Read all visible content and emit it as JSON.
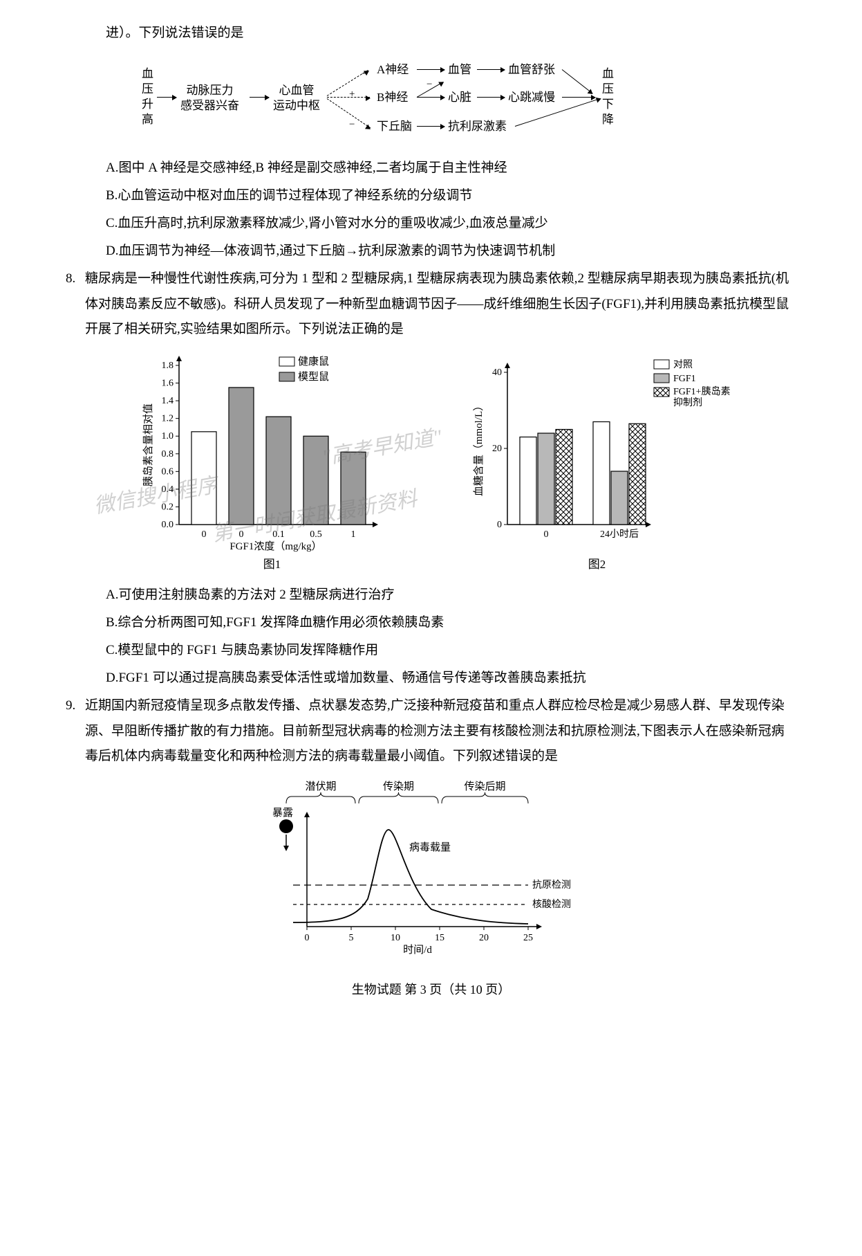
{
  "q7": {
    "continuation": "进）。下列说法错误的是",
    "flow": {
      "start_top": "血",
      "start_mid1": "压",
      "start_mid2": "升",
      "start_bot": "高",
      "node1_top": "动脉压力",
      "node1_bot": "感受器兴奋",
      "node2_top": "心血管",
      "node2_bot": "运动中枢",
      "nodeA": "A神经",
      "nodeB": "B神经",
      "nodeC": "下丘脑",
      "vessel": "血管",
      "vessel_relax": "血管舒张",
      "heart": "心脏",
      "heart_slow": "心跳减慢",
      "adh": "抗利尿激素",
      "out_top": "血",
      "out_mid1": "压",
      "out_mid2": "下",
      "out_bot": "降",
      "plus": "+",
      "minus": "−"
    },
    "optA": "A.图中 A 神经是交感神经,B 神经是副交感神经,二者均属于自主性神经",
    "optB": "B.心血管运动中枢对血压的调节过程体现了神经系统的分级调节",
    "optC": "C.血压升高时,抗利尿激素释放减少,肾小管对水分的重吸收减少,血液总量减少",
    "optD": "D.血压调节为神经—体液调节,通过下丘脑→抗利尿激素的调节为快速调节机制"
  },
  "q8": {
    "num": "8.",
    "stem": "糖尿病是一种慢性代谢性疾病,可分为 1 型和 2 型糖尿病,1 型糖尿病表现为胰岛素依赖,2 型糖尿病早期表现为胰岛素抵抗(机体对胰岛素反应不敏感)。科研人员发现了一种新型血糖调节因子——成纤维细胞生长因子(FGF1),并利用胰岛素抵抗模型鼠开展了相关研究,实验结果如图所示。下列说法正确的是",
    "chart1": {
      "type": "bar",
      "ylabel": "胰岛素含量相对值",
      "xlabel": "FGF1浓度（mg/kg）",
      "caption": "图1",
      "categories": [
        "0",
        "0",
        "0.1",
        "0.5",
        "1"
      ],
      "healthy": [
        1.05
      ],
      "model": [
        1.55,
        1.22,
        1.0,
        0.82
      ],
      "legend_healthy": "健康鼠",
      "legend_model": "模型鼠",
      "color_healthy": "#ffffff",
      "color_model": "#9a9a9a",
      "ylim": [
        0,
        1.8
      ],
      "ytick": 0.2,
      "bar_border": "#000000",
      "axis_color": "#000000",
      "label_fontsize": 14
    },
    "chart2": {
      "type": "bar",
      "ylabel": "血糖含量（mmol/L）",
      "caption": "图2",
      "categories": [
        "0",
        "24小时后"
      ],
      "series_control": [
        23,
        27
      ],
      "series_fgf1": [
        24,
        14
      ],
      "series_fgf1_inhib": [
        25,
        26.5
      ],
      "legend_control": "对照",
      "legend_fgf1": "FGF1",
      "legend_fgf1_inhib_l1": "FGF1+胰岛素",
      "legend_fgf1_inhib_l2": "抑制剂",
      "color_control": "#ffffff",
      "color_fgf1": "#b8b8b8",
      "pattern_inhib": "crosshatch",
      "ylim": [
        0,
        40
      ],
      "ytick": 20,
      "bar_border": "#000000",
      "axis_color": "#000000",
      "label_fontsize": 14
    },
    "optA": "A.可使用注射胰岛素的方法对 2 型糖尿病进行治疗",
    "optB": "B.综合分析两图可知,FGF1 发挥降血糖作用必须依赖胰岛素",
    "optC": "C.模型鼠中的 FGF1 与胰岛素协同发挥降糖作用",
    "optD": "D.FGF1 可以通过提高胰岛素受体活性或增加数量、畅通信号传递等改善胰岛素抵抗"
  },
  "q9": {
    "num": "9.",
    "stem": "近期国内新冠疫情呈现多点散发传播、点状暴发态势,广泛接种新冠疫苗和重点人群应检尽检是减少易感人群、早发现传染源、早阻断传播扩散的有力措施。目前新型冠状病毒的检测方法主要有核酸检测法和抗原检测法,下图表示人在感染新冠病毒后机体内病毒载量变化和两种检测方法的病毒载量最小阈值。下列叙述错误的是",
    "diagram": {
      "phase1": "潜伏期",
      "phase2": "传染期",
      "phase3": "传染后期",
      "exposure": "暴露",
      "viral_load": "病毒载量",
      "antigen": "抗原检测",
      "nucleic": "核酸检测",
      "xlabel": "时间/d",
      "xticks": [
        "0",
        "5",
        "10",
        "15",
        "20",
        "25"
      ],
      "axis_color": "#000000",
      "curve_color": "#000000",
      "dash_color": "#000000"
    }
  },
  "watermarks": {
    "w1": "微信搜小程序",
    "w2": "\"高考早知道\"",
    "w3": "第一时间获取最新资料"
  },
  "footer": "生物试题  第 3 页（共 10 页）"
}
